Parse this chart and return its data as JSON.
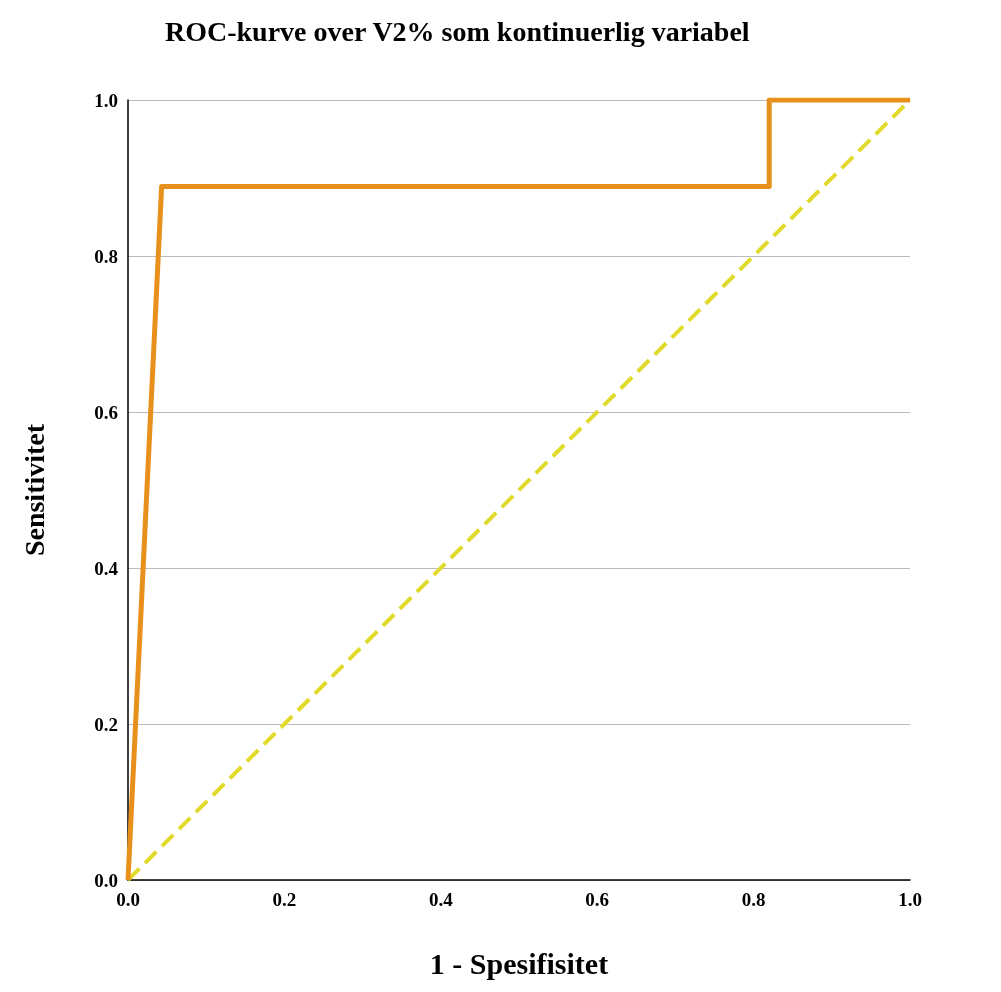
{
  "chart_data": {
    "type": "line",
    "title": "ROC-kurve over V2% som kontinuerlig variabel",
    "xlabel": "1 - Spesifisitet",
    "ylabel": "Sensitivitet",
    "xlim": [
      0,
      1
    ],
    "ylim": [
      0,
      1
    ],
    "xticks": [
      {
        "value": 0,
        "label": "0.0"
      },
      {
        "value": 0.2,
        "label": "0.2"
      },
      {
        "value": 0.4,
        "label": "0.4"
      },
      {
        "value": 0.6,
        "label": "0.6"
      },
      {
        "value": 0.8,
        "label": "0.8"
      },
      {
        "value": 1,
        "label": "1.0"
      }
    ],
    "yticks": [
      {
        "value": 0,
        "label": "0.0"
      },
      {
        "value": 0.2,
        "label": "0.2"
      },
      {
        "value": 0.4,
        "label": "0.4"
      },
      {
        "value": 0.6,
        "label": "0.6"
      },
      {
        "value": 0.8,
        "label": "0.8"
      },
      {
        "value": 1,
        "label": "1.0"
      }
    ],
    "grid": "y",
    "marker": "none",
    "series": [
      {
        "color": "#e8901c",
        "line_style": "solid",
        "x": [
          0,
          0.043,
          0.82,
          0.82,
          1
        ],
        "values": [
          0,
          0.889,
          0.889,
          1,
          1
        ]
      },
      {
        "color": "#e2da2a",
        "line_style": "dashed",
        "x": [
          0,
          1
        ],
        "values": [
          0,
          1
        ]
      }
    ]
  }
}
